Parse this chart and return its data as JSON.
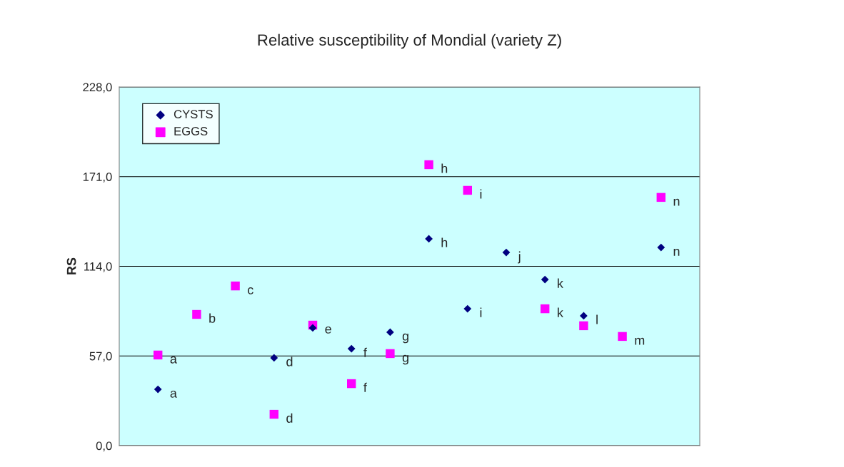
{
  "chart_data": {
    "type": "scatter",
    "title": "Relative susceptibility of Mondial (variety Z)",
    "ylabel": "RS",
    "categories": [
      null,
      null,
      null,
      null,
      null,
      null,
      null,
      null,
      null,
      null,
      null,
      null,
      null,
      null
    ],
    "series": [
      {
        "name": "CYSTS",
        "color": "#000080",
        "marker": "diamond",
        "values": [
          35.8,
          null,
          null,
          55.8,
          74.8,
          61.6,
          72.1,
          131.5,
          87.0,
          122.8,
          105.6,
          82.5,
          null,
          126.0
        ],
        "value_labels": [
          "a",
          null,
          null,
          "d",
          null,
          "f",
          "g",
          "h",
          "i",
          "j",
          "k",
          "l",
          null,
          "n"
        ]
      },
      {
        "name": "EGGS",
        "color": "#ff00ff",
        "marker": "square",
        "values": [
          57.6,
          83.4,
          101.5,
          19.9,
          76.6,
          39.4,
          58.5,
          178.6,
          162.3,
          null,
          87.0,
          76.2,
          69.4,
          157.8
        ],
        "value_labels": [
          "a",
          "b",
          "c",
          "d",
          "e",
          "f",
          "g",
          "h",
          "i",
          null,
          "k",
          null,
          "m",
          "n"
        ]
      }
    ],
    "ylim": [
      0,
      228
    ],
    "yticks": [
      {
        "value": 0,
        "label": "0,0"
      },
      {
        "value": 57,
        "label": "57,0"
      },
      {
        "value": 114,
        "label": "114,0"
      },
      {
        "value": 171,
        "label": "171,0"
      },
      {
        "value": 228,
        "label": "228,0"
      }
    ],
    "grid": "y",
    "legend": "top left"
  }
}
